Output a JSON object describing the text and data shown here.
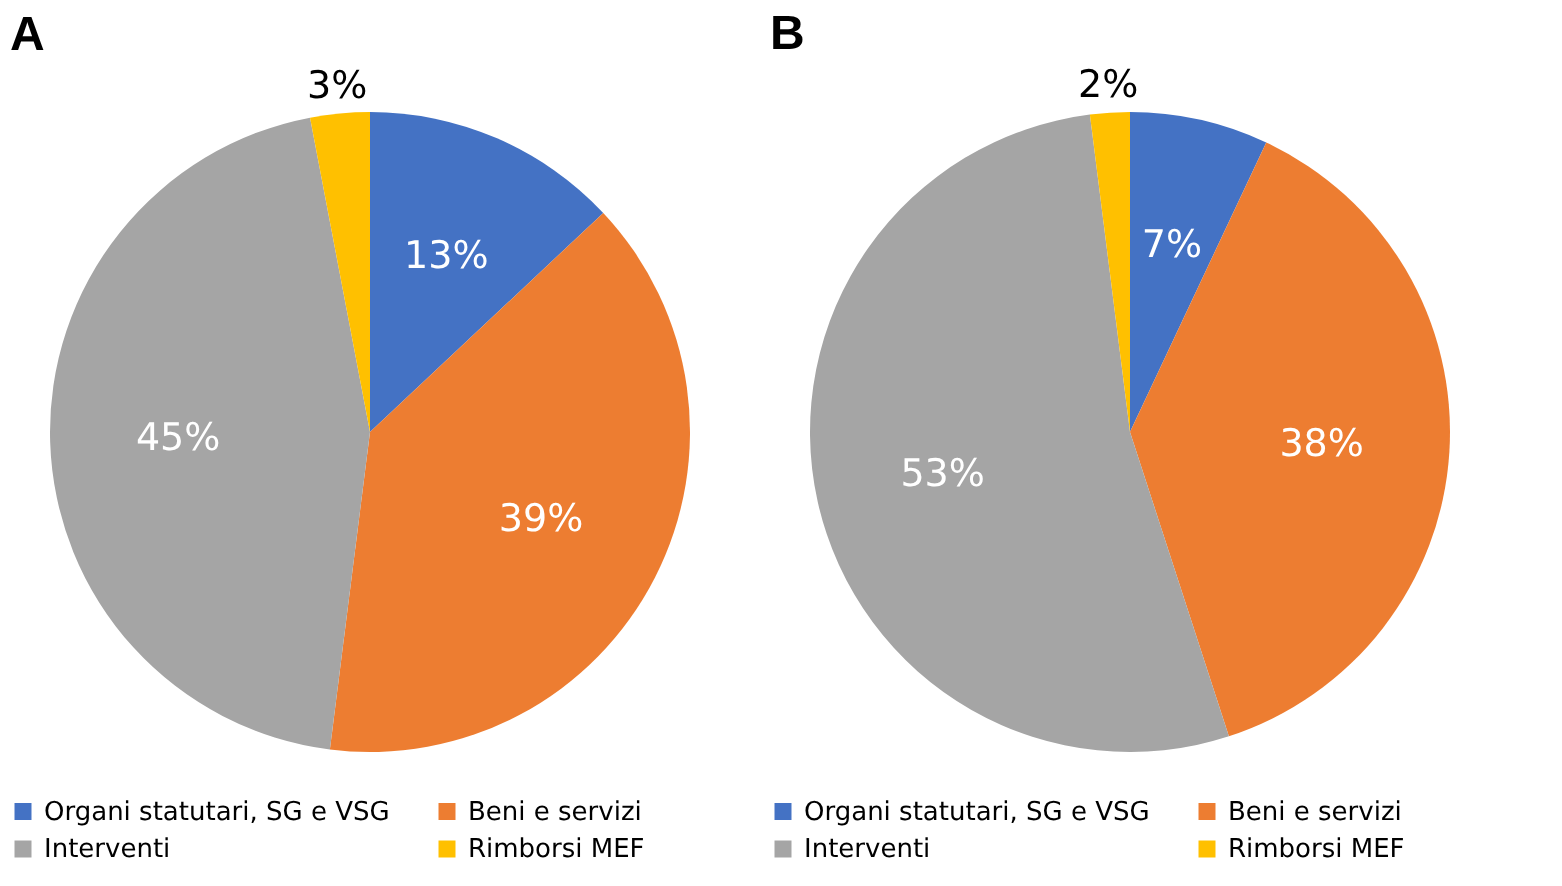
{
  "chart_data": [
    {
      "type": "pie",
      "title": "A",
      "categories": [
        "Organi statutari, SG e VSG",
        "Beni e servizi",
        "Interventi",
        "Rimborsi MEF"
      ],
      "values": [
        13,
        39,
        45,
        3
      ],
      "colors": [
        "#4472c4",
        "#ed7d31",
        "#a5a5a5",
        "#ffc000"
      ],
      "value_labels": [
        "13%",
        "39%",
        "45%",
        "3%"
      ],
      "legend": "bottom"
    },
    {
      "type": "pie",
      "title": "B",
      "categories": [
        "Organi statutari, SG e VSG",
        "Beni e servizi",
        "Interventi",
        "Rimborsi MEF"
      ],
      "values": [
        7,
        38,
        53,
        2
      ],
      "colors": [
        "#4472c4",
        "#ed7d31",
        "#a5a5a5",
        "#ffc000"
      ],
      "value_labels": [
        "7%",
        "38%",
        "53%",
        "2%"
      ],
      "legend": "bottom"
    }
  ]
}
